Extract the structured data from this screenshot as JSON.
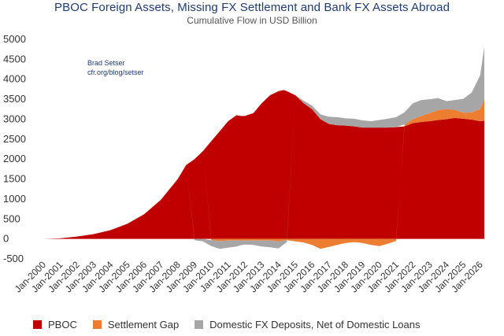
{
  "chart_data": {
    "type": "area",
    "title": "PBOC Foreign Assets, Missing FX Settlement and Bank FX Assets Abroad",
    "subtitle": "Cumulative Flow in USD Billion",
    "annotation": [
      "Brad Setser",
      "cfr.org/blog/setser"
    ],
    "xlabel": "",
    "ylabel": "",
    "ylim": [
      -500,
      5000
    ],
    "y_ticks": [
      5000,
      4500,
      4000,
      3500,
      3000,
      2500,
      2000,
      1500,
      1000,
      500,
      0,
      -500
    ],
    "x_range": [
      2000.0,
      2026.25
    ],
    "x_tick_labels": [
      "Jan-2000",
      "Jan-2001",
      "Jan-2002",
      "Jan-2003",
      "Jan-2004",
      "Jan-2005",
      "Jan-2006",
      "Jan-2007",
      "Jan-2008",
      "Jan-2009",
      "Jan-2010",
      "Jan-2011",
      "Jan-2012",
      "Jan-2013",
      "Jan-2014",
      "Jan-2015",
      "Jan-2016",
      "Jan-2017",
      "Jan-2018",
      "Jan-2019",
      "Jan-2020",
      "Jan-2021",
      "Jan-2022",
      "Jan-2023",
      "Jan-2024",
      "Jan-2025",
      "Jan-2026"
    ],
    "grid": false,
    "legend_position": "bottom",
    "stacked": true,
    "x": [
      2000.0,
      2001.0,
      2002.0,
      2003.0,
      2004.0,
      2005.0,
      2006.0,
      2007.0,
      2008.0,
      2008.5,
      2009.0,
      2009.5,
      2010.0,
      2010.5,
      2011.0,
      2011.5,
      2011.75,
      2012.0,
      2012.5,
      2013.0,
      2013.5,
      2014.0,
      2014.3,
      2014.5,
      2015.0,
      2015.5,
      2016.0,
      2016.5,
      2017.0,
      2017.5,
      2018.0,
      2018.5,
      2019.0,
      2019.5,
      2020.0,
      2020.5,
      2021.0,
      2021.5,
      2022.0,
      2022.5,
      2023.0,
      2023.5,
      2024.0,
      2024.5,
      2025.0,
      2025.5,
      2026.0,
      2026.25
    ],
    "series": [
      {
        "name": "PBOC",
        "color": "#c00000",
        "values": [
          0,
          15,
          60,
          120,
          220,
          380,
          620,
          980,
          1500,
          1850,
          2000,
          2200,
          2450,
          2700,
          2950,
          3100,
          3080,
          3080,
          3150,
          3400,
          3600,
          3700,
          3730,
          3700,
          3600,
          3400,
          3250,
          3000,
          2880,
          2850,
          2840,
          2820,
          2790,
          2790,
          2790,
          2790,
          2800,
          2820,
          2900,
          2930,
          2950,
          2980,
          3000,
          3030,
          3010,
          2990,
          2950,
          2960
        ]
      },
      {
        "name": "Settlement Gap",
        "color": "#ed7d31",
        "values": [
          0,
          0,
          0,
          0,
          0,
          0,
          0,
          0,
          0,
          0,
          0,
          0,
          -30,
          -50,
          -40,
          -40,
          -40,
          -40,
          -40,
          -40,
          -40,
          -60,
          -40,
          -30,
          -60,
          -90,
          -150,
          -250,
          -200,
          -150,
          -100,
          -80,
          -100,
          -150,
          -180,
          -120,
          -50,
          50,
          100,
          150,
          200,
          250,
          250,
          200,
          150,
          180,
          300,
          550
        ]
      },
      {
        "name": "Domestic FX Deposits, Net of Domestic Loans",
        "color": "#a6a6a6",
        "values": [
          0,
          0,
          0,
          0,
          0,
          0,
          0,
          0,
          0,
          0,
          -30,
          -60,
          -150,
          -200,
          -180,
          -150,
          -120,
          -100,
          -110,
          -150,
          -170,
          -180,
          -100,
          -50,
          0,
          60,
          90,
          120,
          180,
          200,
          180,
          190,
          180,
          160,
          190,
          220,
          250,
          300,
          400,
          400,
          350,
          300,
          200,
          250,
          350,
          500,
          850,
          1300
        ]
      }
    ]
  }
}
